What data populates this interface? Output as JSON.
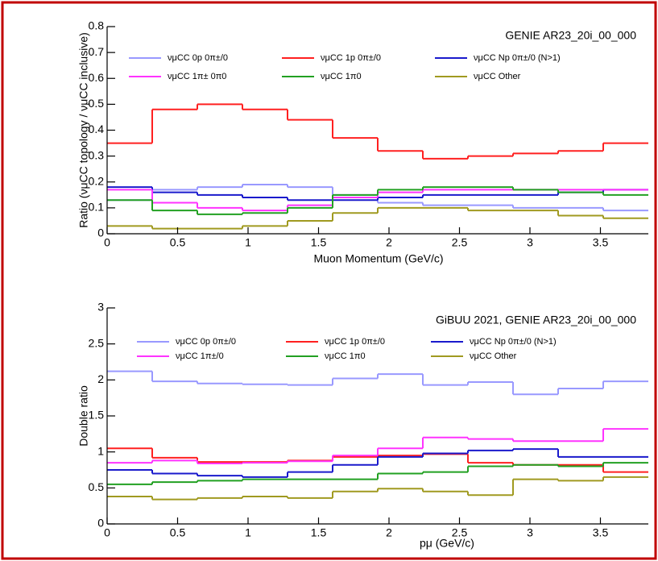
{
  "chart_data": [
    {
      "type": "histogram",
      "annotation": "GENIE AR23_20i_00_000",
      "x_label": "Muon Momentum (GeV/c)",
      "y_label": "Ratio (νμCC topology / νμCC inclusive)",
      "bins": [
        0,
        0.32,
        0.64,
        0.96,
        1.28,
        1.6,
        1.92,
        2.24,
        2.56,
        2.88,
        3.2,
        3.52,
        3.84
      ],
      "xlim": [
        0,
        3.84
      ],
      "xticks": [
        0,
        0.5,
        1,
        1.5,
        2,
        2.5,
        3,
        3.5
      ],
      "ylim": [
        0,
        0.8
      ],
      "yticks": [
        0,
        0.1,
        0.2,
        0.3,
        0.4,
        0.5,
        0.6,
        0.7,
        0.8
      ],
      "grid": false,
      "series": [
        {
          "name": "νμCC 0p 0π±/0",
          "color": "#9999ff",
          "values": [
            0.13,
            0.17,
            0.18,
            0.19,
            0.18,
            0.15,
            0.12,
            0.11,
            0.11,
            0.1,
            0.1,
            0.09
          ]
        },
        {
          "name": "νμCC 1p 0π±/0",
          "color": "#ff2020",
          "values": [
            0.35,
            0.48,
            0.5,
            0.48,
            0.44,
            0.37,
            0.32,
            0.29,
            0.3,
            0.31,
            0.32,
            0.35
          ]
        },
        {
          "name": "νμCC Np 0π±/0 (N>1)",
          "color": "#1a1acc",
          "values": [
            0.18,
            0.16,
            0.15,
            0.14,
            0.13,
            0.13,
            0.14,
            0.15,
            0.15,
            0.15,
            0.16,
            0.17
          ]
        },
        {
          "name": "νμCC 1π± 0π0",
          "color": "#ff33ff",
          "values": [
            0.17,
            0.12,
            0.1,
            0.09,
            0.11,
            0.14,
            0.16,
            0.17,
            0.17,
            0.17,
            0.17,
            0.17
          ]
        },
        {
          "name": "νμCC 1π0",
          "color": "#22a022",
          "values": [
            0.13,
            0.09,
            0.075,
            0.08,
            0.1,
            0.15,
            0.17,
            0.18,
            0.18,
            0.17,
            0.16,
            0.15
          ]
        },
        {
          "name": "νμCC Other",
          "color": "#a09a20",
          "values": [
            0.03,
            0.02,
            0.02,
            0.03,
            0.05,
            0.08,
            0.1,
            0.1,
            0.09,
            0.09,
            0.07,
            0.06
          ]
        }
      ]
    },
    {
      "type": "histogram",
      "annotation": "GiBUU 2021, GENIE AR23_20i_00_000",
      "x_label": "pμ (GeV/c)",
      "y_label": "Double ratio",
      "bins": [
        0,
        0.32,
        0.64,
        0.96,
        1.28,
        1.6,
        1.92,
        2.24,
        2.56,
        2.88,
        3.2,
        3.52,
        3.84
      ],
      "xlim": [
        0,
        3.84
      ],
      "xticks": [
        0,
        0.5,
        1,
        1.5,
        2,
        2.5,
        3,
        3.5
      ],
      "ylim": [
        0,
        3
      ],
      "yticks": [
        0,
        0.5,
        1,
        1.5,
        2,
        2.5,
        3
      ],
      "grid": false,
      "series": [
        {
          "name": "νμCC 0p 0π±/0",
          "color": "#9999ff",
          "values": [
            2.12,
            1.98,
            1.95,
            1.94,
            1.93,
            2.02,
            2.08,
            1.93,
            1.97,
            1.8,
            1.88,
            1.98
          ]
        },
        {
          "name": "νμCC 1p 0π±/0",
          "color": "#ff2020",
          "values": [
            1.05,
            0.92,
            0.86,
            0.86,
            0.88,
            0.93,
            0.95,
            0.97,
            0.85,
            0.82,
            0.82,
            0.72
          ]
        },
        {
          "name": "νμCC Np 0π±/0 (N>1)",
          "color": "#1a1acc",
          "values": [
            0.75,
            0.7,
            0.67,
            0.65,
            0.72,
            0.82,
            0.93,
            0.98,
            1.02,
            1.04,
            0.93,
            0.93
          ]
        },
        {
          "name": "νμCC 1π±/0",
          "color": "#ff33ff",
          "values": [
            0.85,
            0.88,
            0.84,
            0.85,
            0.87,
            0.95,
            1.05,
            1.2,
            1.18,
            1.15,
            1.15,
            1.32
          ]
        },
        {
          "name": "νμCC 1π0",
          "color": "#22a022",
          "values": [
            0.55,
            0.58,
            0.6,
            0.62,
            0.62,
            0.62,
            0.7,
            0.72,
            0.8,
            0.82,
            0.8,
            0.85
          ]
        },
        {
          "name": "νμCC Other",
          "color": "#a09a20",
          "values": [
            0.38,
            0.34,
            0.36,
            0.38,
            0.36,
            0.45,
            0.49,
            0.45,
            0.4,
            0.62,
            0.6,
            0.65
          ]
        }
      ]
    }
  ]
}
